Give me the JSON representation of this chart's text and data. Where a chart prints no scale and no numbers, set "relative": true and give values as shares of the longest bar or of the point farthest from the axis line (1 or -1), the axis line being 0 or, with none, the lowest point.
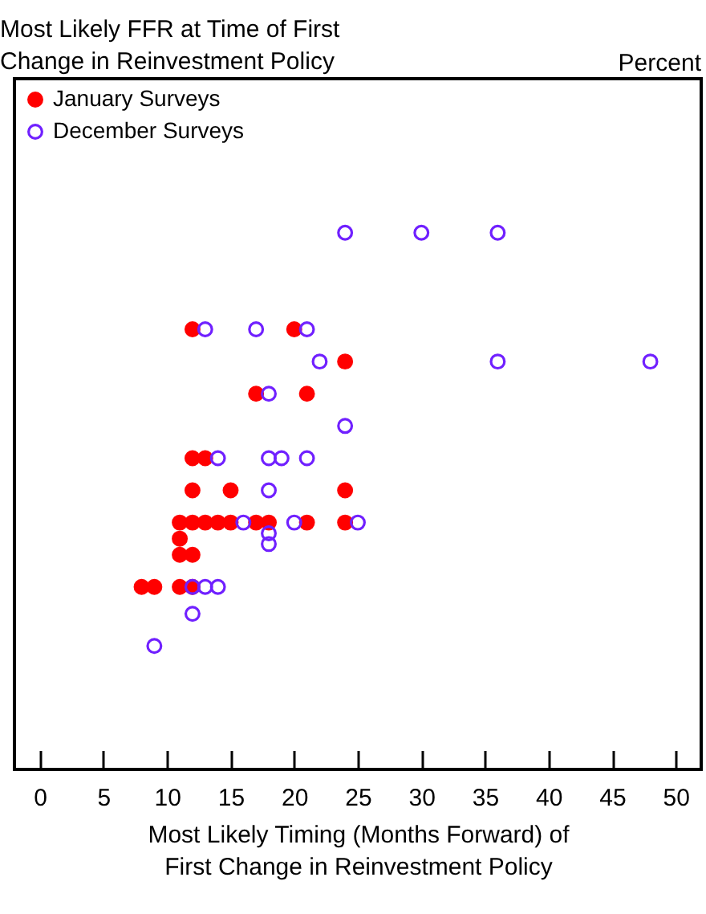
{
  "chart_data": {
    "type": "scatter",
    "relative": true,
    "title": "Most Likely FFR at Time of First\nChange in Reinvestment Policy",
    "annotations": [
      "Percent"
    ],
    "xlabel": "Most Likely Timing (Months Forward) of\nFirst Change in Reinvestment Policy",
    "xlim": [
      -2,
      52
    ],
    "xticks": [
      0,
      5,
      10,
      15,
      20,
      25,
      30,
      35,
      40,
      45,
      50
    ],
    "legend": "top left",
    "marker": "circle",
    "grid": false,
    "series": [
      {
        "name": "January Surveys",
        "color": "#ff0000",
        "x": [
          12,
          20,
          24,
          17,
          21,
          12,
          13,
          12,
          15,
          24,
          11,
          12,
          13,
          14,
          15,
          17,
          18,
          21,
          24,
          11,
          11,
          12,
          8,
          9,
          11,
          12
        ],
        "values": [
          0.82,
          0.82,
          0.76,
          0.7,
          0.7,
          0.58,
          0.58,
          0.52,
          0.52,
          0.52,
          0.46,
          0.46,
          0.46,
          0.46,
          0.46,
          0.46,
          0.46,
          0.46,
          0.46,
          0.43,
          0.4,
          0.4,
          0.34,
          0.34,
          0.34,
          0.34
        ]
      },
      {
        "name": "December Surveys",
        "color": "#7020ff",
        "x": [
          24,
          30,
          36,
          13,
          17,
          21,
          22,
          36,
          48,
          18,
          24,
          14,
          18,
          19,
          21,
          18,
          16,
          20,
          25,
          18,
          18,
          12,
          13,
          14,
          12,
          9
        ],
        "values": [
          1,
          1,
          1,
          0.82,
          0.82,
          0.82,
          0.76,
          0.76,
          0.76,
          0.7,
          0.64,
          0.58,
          0.58,
          0.58,
          0.58,
          0.52,
          0.46,
          0.46,
          0.46,
          0.44,
          0.42,
          0.34,
          0.34,
          0.34,
          0.29,
          0.23
        ]
      }
    ]
  }
}
